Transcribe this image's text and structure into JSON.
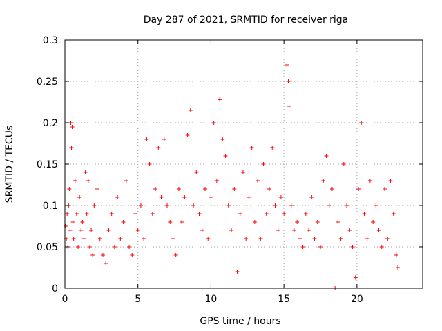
{
  "chart_data": {
    "type": "scatter",
    "title": "Day 287 of 2021, SRMTID for receiver riga",
    "xlabel": "GPS time / hours",
    "ylabel": "SRMTID / TECUs",
    "xlim": [
      0,
      24.5
    ],
    "ylim": [
      0,
      0.3
    ],
    "xticks": [
      0,
      5,
      10,
      15,
      20
    ],
    "xtick_labels": [
      "0",
      "5",
      "10",
      "15",
      "20"
    ],
    "yticks": [
      0,
      0.05,
      0.1,
      0.15,
      0.2,
      0.25,
      0.3
    ],
    "ytick_labels": [
      "0",
      "0.05",
      "0.1",
      "0.15",
      "0.2",
      "0.25",
      "0.3"
    ],
    "grid": true,
    "series_color": "#ff0000",
    "marker": "plus",
    "series": [
      {
        "name": "SRMTID",
        "points": [
          [
            0.05,
            0.075
          ],
          [
            0.1,
            0.06
          ],
          [
            0.15,
            0.09
          ],
          [
            0.2,
            0.05
          ],
          [
            0.25,
            0.1
          ],
          [
            0.3,
            0.12
          ],
          [
            0.35,
            0.07
          ],
          [
            0.4,
            0.2
          ],
          [
            0.45,
            0.17
          ],
          [
            0.5,
            0.195
          ],
          [
            0.55,
            0.08
          ],
          [
            0.6,
            0.06
          ],
          [
            0.7,
            0.13
          ],
          [
            0.8,
            0.09
          ],
          [
            0.9,
            0.05
          ],
          [
            1.0,
            0.11
          ],
          [
            1.1,
            0.07
          ],
          [
            1.2,
            0.08
          ],
          [
            1.3,
            0.06
          ],
          [
            1.4,
            0.14
          ],
          [
            1.5,
            0.09
          ],
          [
            1.6,
            0.13
          ],
          [
            1.7,
            0.05
          ],
          [
            1.8,
            0.07
          ],
          [
            1.9,
            0.04
          ],
          [
            2.0,
            0.1
          ],
          [
            2.2,
            0.12
          ],
          [
            2.4,
            0.06
          ],
          [
            2.6,
            0.04
          ],
          [
            2.8,
            0.03
          ],
          [
            3.0,
            0.07
          ],
          [
            3.2,
            0.09
          ],
          [
            3.4,
            0.05
          ],
          [
            3.6,
            0.11
          ],
          [
            3.8,
            0.06
          ],
          [
            4.0,
            0.08
          ],
          [
            4.2,
            0.13
          ],
          [
            4.4,
            0.05
          ],
          [
            4.6,
            0.04
          ],
          [
            4.8,
            0.09
          ],
          [
            5.0,
            0.07
          ],
          [
            5.2,
            0.1
          ],
          [
            5.4,
            0.06
          ],
          [
            5.6,
            0.18
          ],
          [
            5.8,
            0.15
          ],
          [
            6.0,
            0.09
          ],
          [
            6.2,
            0.12
          ],
          [
            6.4,
            0.17
          ],
          [
            6.6,
            0.11
          ],
          [
            6.8,
            0.18
          ],
          [
            7.0,
            0.1
          ],
          [
            7.2,
            0.08
          ],
          [
            7.4,
            0.06
          ],
          [
            7.6,
            0.04
          ],
          [
            7.8,
            0.12
          ],
          [
            8.0,
            0.08
          ],
          [
            8.2,
            0.11
          ],
          [
            8.4,
            0.185
          ],
          [
            8.6,
            0.215
          ],
          [
            8.8,
            0.1
          ],
          [
            9.0,
            0.14
          ],
          [
            9.2,
            0.09
          ],
          [
            9.4,
            0.07
          ],
          [
            9.6,
            0.12
          ],
          [
            9.8,
            0.06
          ],
          [
            10.0,
            0.11
          ],
          [
            10.2,
            0.2
          ],
          [
            10.4,
            0.13
          ],
          [
            10.6,
            0.228
          ],
          [
            10.8,
            0.18
          ],
          [
            11.0,
            0.16
          ],
          [
            11.2,
            0.1
          ],
          [
            11.4,
            0.07
          ],
          [
            11.6,
            0.12
          ],
          [
            11.8,
            0.02
          ],
          [
            12.0,
            0.09
          ],
          [
            12.2,
            0.14
          ],
          [
            12.4,
            0.06
          ],
          [
            12.6,
            0.11
          ],
          [
            12.8,
            0.17
          ],
          [
            13.0,
            0.08
          ],
          [
            13.2,
            0.13
          ],
          [
            13.4,
            0.06
          ],
          [
            13.6,
            0.15
          ],
          [
            13.8,
            0.09
          ],
          [
            14.0,
            0.12
          ],
          [
            14.2,
            0.17
          ],
          [
            14.4,
            0.1
          ],
          [
            14.6,
            0.07
          ],
          [
            14.8,
            0.11
          ],
          [
            15.0,
            0.09
          ],
          [
            15.2,
            0.27
          ],
          [
            15.3,
            0.25
          ],
          [
            15.35,
            0.22
          ],
          [
            15.5,
            0.1
          ],
          [
            15.7,
            0.07
          ],
          [
            15.9,
            0.08
          ],
          [
            16.1,
            0.06
          ],
          [
            16.3,
            0.05
          ],
          [
            16.5,
            0.09
          ],
          [
            16.7,
            0.07
          ],
          [
            16.9,
            0.11
          ],
          [
            17.1,
            0.06
          ],
          [
            17.3,
            0.08
          ],
          [
            17.5,
            0.05
          ],
          [
            17.7,
            0.13
          ],
          [
            17.9,
            0.16
          ],
          [
            18.1,
            0.1
          ],
          [
            18.3,
            0.12
          ],
          [
            18.5,
            0.0
          ],
          [
            18.7,
            0.08
          ],
          [
            18.9,
            0.06
          ],
          [
            19.1,
            0.15
          ],
          [
            19.3,
            0.1
          ],
          [
            19.5,
            0.07
          ],
          [
            19.7,
            0.05
          ],
          [
            19.9,
            0.013
          ],
          [
            20.1,
            0.12
          ],
          [
            20.3,
            0.2
          ],
          [
            20.5,
            0.09
          ],
          [
            20.7,
            0.06
          ],
          [
            20.9,
            0.13
          ],
          [
            21.1,
            0.08
          ],
          [
            21.3,
            0.1
          ],
          [
            21.5,
            0.07
          ],
          [
            21.7,
            0.05
          ],
          [
            21.9,
            0.12
          ],
          [
            22.1,
            0.06
          ],
          [
            22.3,
            0.13
          ],
          [
            22.5,
            0.09
          ],
          [
            22.7,
            0.04
          ],
          [
            22.8,
            0.025
          ]
        ]
      }
    ]
  }
}
